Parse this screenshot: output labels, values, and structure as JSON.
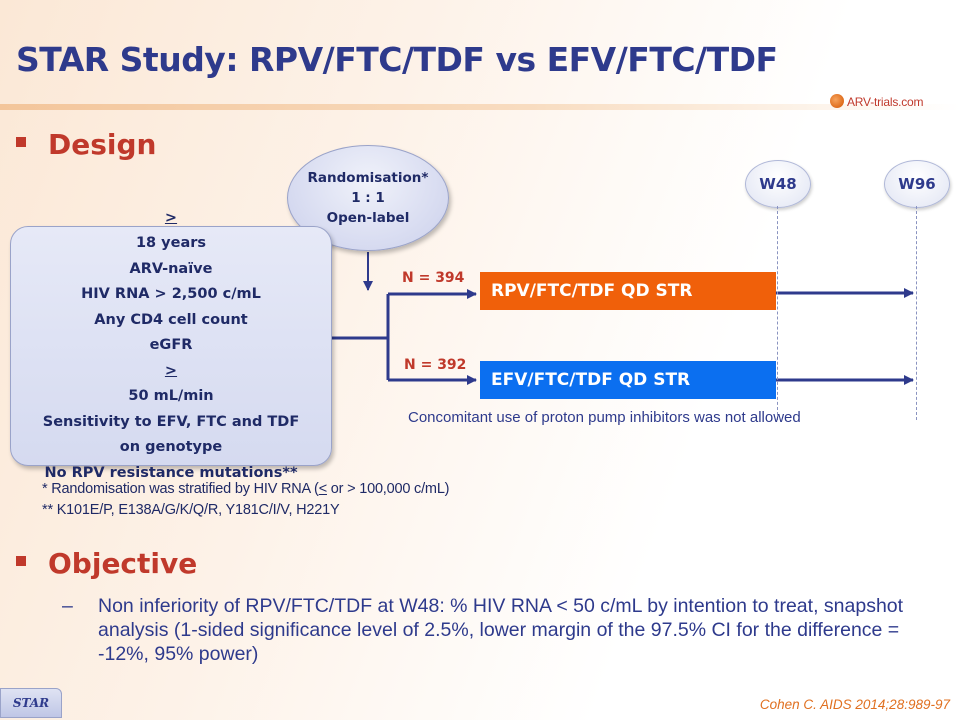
{
  "title": "STAR Study: RPV/FTC/TDF vs EFV/FTC/TDF",
  "logo": {
    "text": "ARV-trials.com"
  },
  "sections": {
    "design": "Design",
    "objective": "Objective"
  },
  "randomisation": {
    "line1": "Randomisation*",
    "line2": "1 : 1",
    "line3": "Open-label"
  },
  "criteria": {
    "age_symbol": ">",
    "age_rest": " 18 years",
    "arv": "ARV-naïve",
    "hiv_rna": "HIV RNA > 2,500 c/mL",
    "cd4": "Any CD4 cell count",
    "egfr_pre": "eGFR ",
    "egfr_symbol": ">",
    "egfr_post": " 50 mL/min",
    "sensitivity1": "Sensitivity to EFV, FTC and TDF",
    "sensitivity2": "on genotype",
    "resistance": "No RPV resistance mutations**"
  },
  "timepoints": {
    "w48": "W48",
    "w96": "W96"
  },
  "arms": {
    "rpv": {
      "n": "N = 394",
      "label": "RPV/FTC/TDF QD STR",
      "color": "#f0600a"
    },
    "efv": {
      "n": "N = 392",
      "label": "EFV/FTC/TDF QD STR",
      "color": "#0b6ff0"
    }
  },
  "ppi_note": "Concomitant use of proton pump inhibitors was not allowed",
  "footnotes": {
    "f1_pre": "* Randomisation was stratified by HIV RNA (",
    "f1_symbol": "<",
    "f1_post": " or > 100,000 c/mL)",
    "f2": "** K101E/P, E138A/G/K/Q/R, Y181C/I/V, H221Y"
  },
  "objective": {
    "dash": "–",
    "text": "Non inferiority of RPV/FTC/TDF at W48: % HIV RNA < 50 c/mL by intention to treat, snapshot analysis (1-sided significance level of 2.5%, lower margin of the 97.5% CI for the difference = -12%, 95% power)"
  },
  "tab": "STAR",
  "reference": "Cohen C. AIDS 2014;28:989-97"
}
